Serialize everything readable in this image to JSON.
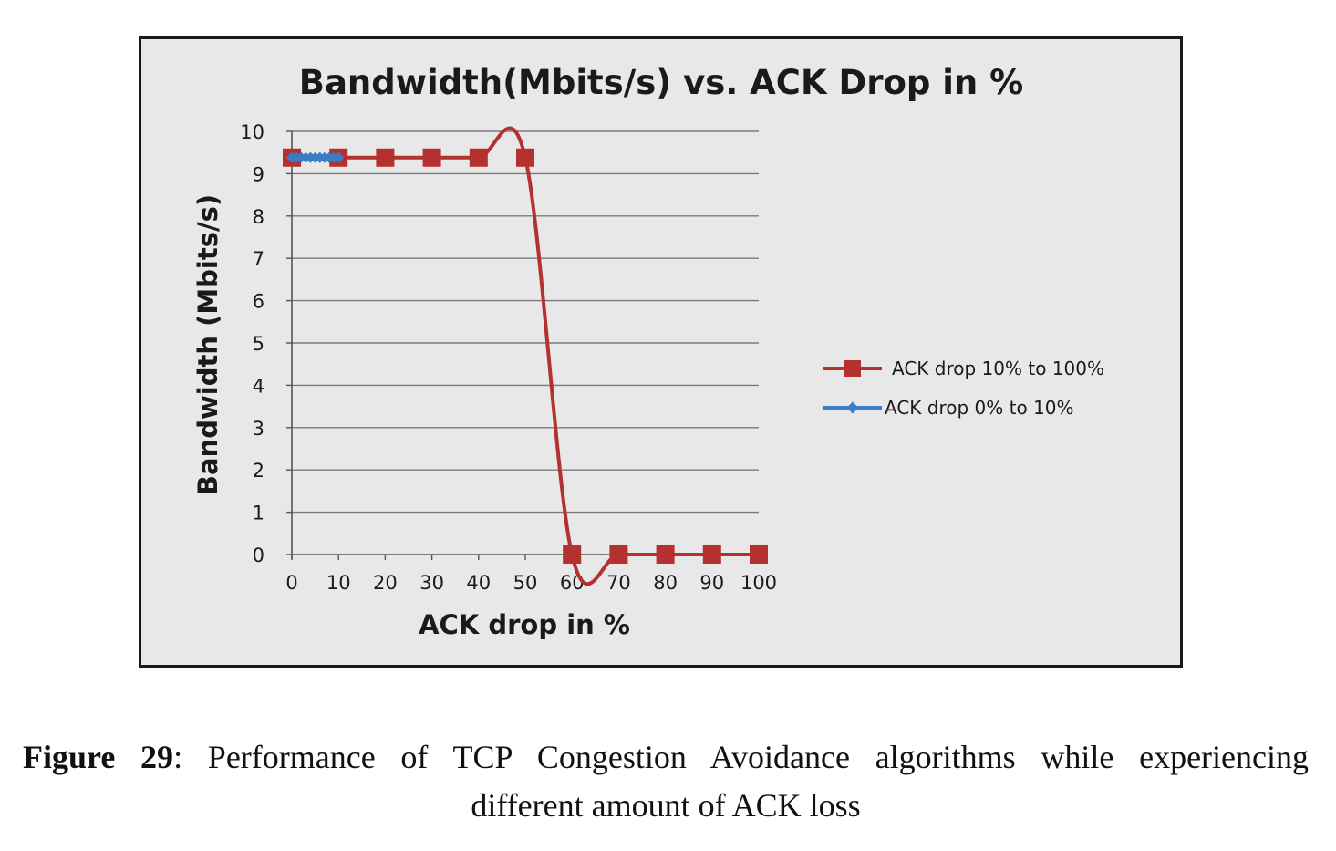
{
  "chart_data": {
    "type": "line",
    "title": "Bandwidth(Mbits/s) vs. ACK Drop in %",
    "xlabel": "ACK drop in %",
    "ylabel": "Bandwidth (Mbits/s)",
    "x_ticks": [
      0,
      10,
      20,
      30,
      40,
      50,
      60,
      70,
      80,
      90,
      100
    ],
    "y_ticks": [
      0,
      1,
      2,
      3,
      4,
      5,
      6,
      7,
      8,
      9,
      10
    ],
    "xlim": [
      0,
      100
    ],
    "ylim": [
      0,
      10
    ],
    "grid": "horizontal",
    "legend_position": "right",
    "series": [
      {
        "name": "ACK drop 10% to 100%",
        "color": "#b5312e",
        "marker": "square",
        "smooth": true,
        "x": [
          0,
          10,
          20,
          30,
          40,
          50,
          60,
          70,
          80,
          90,
          100
        ],
        "y": [
          9.38,
          9.38,
          9.38,
          9.38,
          9.38,
          9.38,
          0,
          0,
          0,
          0,
          0
        ]
      },
      {
        "name": "ACK drop 0% to 10%",
        "color": "#3a7cc6",
        "marker": "diamond",
        "smooth": false,
        "x": [
          0,
          1,
          2,
          3,
          4,
          5,
          6,
          7,
          8,
          9,
          10
        ],
        "y": [
          9.38,
          9.38,
          9.38,
          9.38,
          9.38,
          9.38,
          9.38,
          9.38,
          9.38,
          9.38,
          9.38
        ]
      }
    ]
  },
  "caption": {
    "label": "Figure 29",
    "line1_text": ": Performance of TCP Congestion Avoidance algorithms while experiencing",
    "line2_text": "different amount of ACK loss"
  }
}
